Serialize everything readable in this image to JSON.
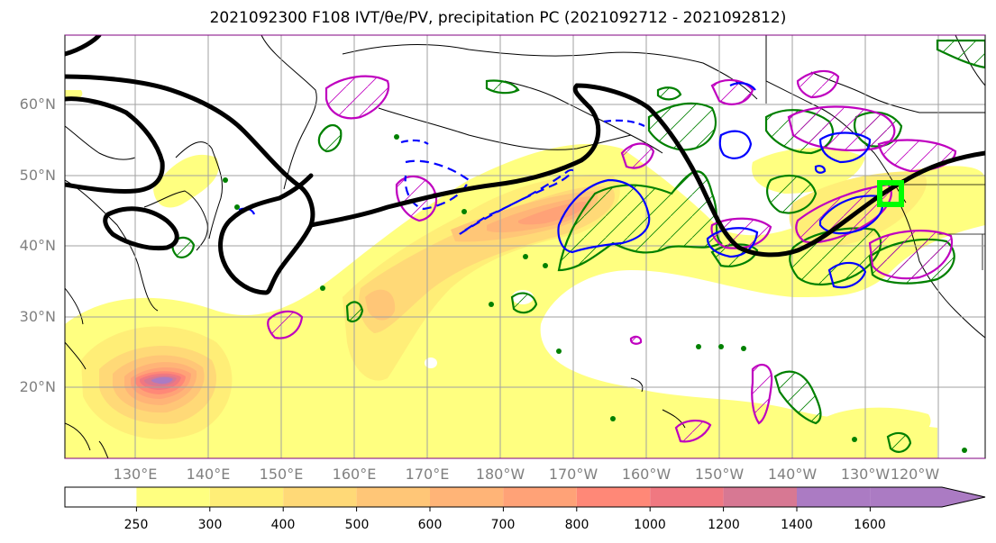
{
  "title": "2021092300 F108 IVT/θe/PV, precipitation PC (2021092712 - 2021092812)",
  "lat_labels": [
    "60°N",
    "50°N",
    "40°N",
    "30°N",
    "20°N"
  ],
  "lon_labels": [
    "130°E",
    "140°E",
    "150°E",
    "160°E",
    "170°E",
    "180°W",
    "170°W",
    "160°W",
    "150°W",
    "140°W",
    "130°W",
    "120°W"
  ],
  "colorbar": {
    "ticks": [
      "250",
      "300",
      "400",
      "500",
      "600",
      "700",
      "800",
      "1000",
      "1200",
      "1400",
      "1600"
    ],
    "colors": [
      "#ffffff",
      "#ffff80",
      "#ffee77",
      "#ffd977",
      "#ffc677",
      "#ffb477",
      "#ffa277",
      "#ff8877",
      "#f07881",
      "#d77893",
      "#ab7bc3"
    ],
    "extend": "max"
  },
  "colors": {
    "ivt_contour_jet": "#000000",
    "theta_e_contour": "#008000",
    "pv_positive_contour": "#bf00bf",
    "pv_dashed_contour": "#0000ff",
    "target_box": "#00ff00"
  }
}
